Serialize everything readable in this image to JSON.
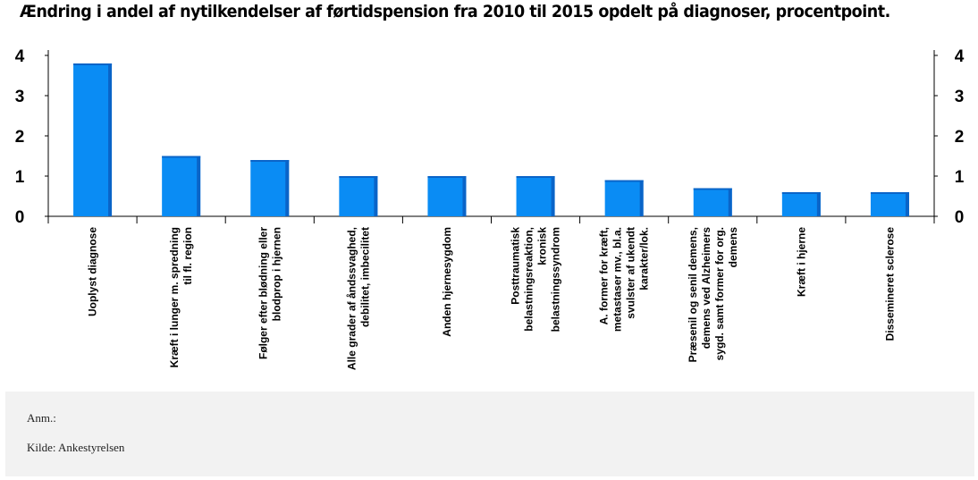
{
  "title": "Ændring i andel af nytilkendelser af førtidspension fra 2010 til 2015 opdelt på diagnoser, procentpoint.",
  "notes": {
    "anm": "Anm.:",
    "source": "Kilde: Ankestyrelsen"
  },
  "colors": {
    "bar": "#0a8cf4",
    "bar_side": "#0a64c8",
    "axis": "#000000",
    "notes_bg": "#f2f2f2"
  },
  "chart_data": {
    "type": "bar",
    "title": "Ændring i andel af nytilkendelser af førtidspension fra 2010 til 2015 opdelt på diagnoser, procentpoint.",
    "ylim": [
      0,
      4
    ],
    "yticks": [
      0,
      1,
      2,
      3,
      4
    ],
    "secondary_y_axis": true,
    "grid": false,
    "categories": [
      [
        "Uoplyst diagnose"
      ],
      [
        "Kræft i lunger m. spredning",
        "til fl. region"
      ],
      [
        "Følger efter blødning eller",
        "blodprop i hjernen"
      ],
      [
        "Alle grader af åndssvaghed,",
        "debilitet, imbecilitet"
      ],
      [
        "Anden hjernesygdom"
      ],
      [
        "Posttraumatisk",
        "belastningsreaktion,",
        "kronisk",
        "belastningssyndrom"
      ],
      [
        "A. former for kræft,",
        "metastaser mv., bl.a.",
        "svulster af ukendt",
        "karakter/lok."
      ],
      [
        "Præsenil og senil demens,",
        "demens ved Alzheimers",
        "sygd. samt former for org.",
        "demens"
      ],
      [
        "Kræft i hjerne"
      ],
      [
        "Dissemineret sclerose"
      ]
    ],
    "values": [
      3.8,
      1.5,
      1.4,
      1.0,
      1.0,
      1.0,
      0.9,
      0.7,
      0.6,
      0.6
    ]
  }
}
